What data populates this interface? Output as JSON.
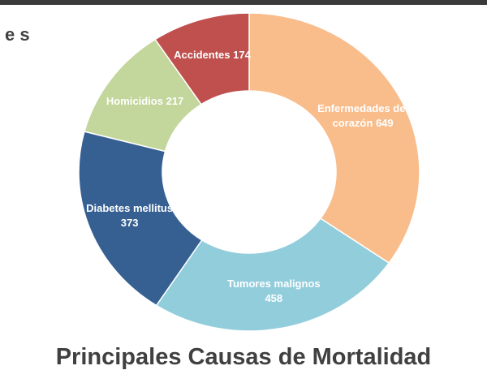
{
  "header_fragment": "e s",
  "chart_data": {
    "type": "donut",
    "title": "Principales Causas de Mortalidad",
    "categories": [
      "Enfermedades del corazón",
      "Tumores malignos",
      "Diabetes mellitus",
      "Homicidios",
      "Accidentes"
    ],
    "values": [
      649,
      458,
      373,
      217,
      174
    ],
    "colors": [
      "#f9bd8b",
      "#92cddc",
      "#366092",
      "#c3d69b",
      "#c0504d"
    ]
  }
}
